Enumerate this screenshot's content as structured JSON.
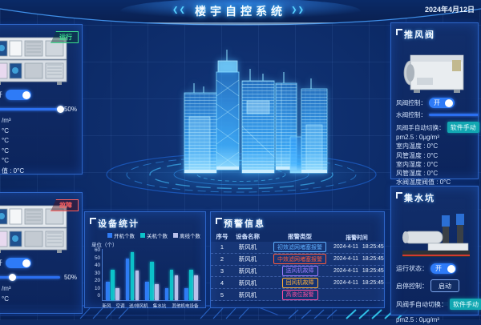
{
  "header": {
    "title": "楼宇自控系统",
    "date": "2024年4月12日",
    "left_chevron": "❮❮",
    "right_chevron": "❯❯"
  },
  "left_top_panel": {
    "status_badge": "运行",
    "switch_label": "开",
    "slider_value": "50%",
    "slider_knob_pct": 96,
    "lines": [
      "/m³",
      "°C",
      "°C",
      "°C",
      "°C",
      "值 : 0°C"
    ]
  },
  "left_bottom_panel": {
    "status_badge": "故障",
    "switch_label": "开",
    "slider_value": "50%",
    "slider_knob_pct": 38,
    "lines": [
      "/m³",
      "°C"
    ]
  },
  "chart_data": {
    "type": "bar",
    "title": "设备统计",
    "ylabel": "单位（个）",
    "categories": [
      "新风",
      "空调",
      "送/排风机",
      "集水坑",
      "其他机电设备"
    ],
    "series": [
      {
        "name": "开机个数",
        "color": "#2f7bf5",
        "values": [
          23,
          53,
          23,
          15,
          15
        ]
      },
      {
        "name": "关机个数",
        "color": "#0cc2c9",
        "values": [
          39,
          61,
          49,
          39,
          39
        ]
      },
      {
        "name": "离线个数",
        "color": "#b9c0ea",
        "values": [
          15,
          38,
          20,
          32,
          32
        ]
      }
    ],
    "y_ticks": [
      60,
      50,
      40,
      30,
      20,
      10,
      0
    ],
    "ylim": [
      0,
      65
    ],
    "legend_position": "top-right",
    "grid": false
  },
  "alerts": {
    "title": "预警信息",
    "columns": [
      "序号",
      "设备名称",
      "报警类型",
      "报警时间"
    ],
    "rows": [
      {
        "no": "1",
        "device": "新风机",
        "type": "初效滤网堵塞报警",
        "color": "#5fb0ff",
        "date": "2024-4-11",
        "time": "18:25:45"
      },
      {
        "no": "2",
        "device": "新风机",
        "type": "中效滤网堵塞报警",
        "color": "#ff5a3c",
        "date": "2024-4-11",
        "time": "18:25:45"
      },
      {
        "no": "3",
        "device": "新风机",
        "type": "送风机故障",
        "color": "#9d7bff",
        "date": "2024-4-11",
        "time": "18:25:45"
      },
      {
        "no": "4",
        "device": "新风机",
        "type": "回风机故障",
        "color": "#ffb03a",
        "date": "2024-4-11",
        "time": "18:25:45"
      },
      {
        "no": "5",
        "device": "新风机",
        "type": "高液位报警",
        "color": "#ff4fa0",
        "date": "",
        "time": ""
      }
    ]
  },
  "exhaust_valve_panel": {
    "title": "推风阀",
    "damper_label": "风阀控制：",
    "damper_state": "开",
    "water_valve_label": "水阀控制：",
    "manual_label": "风阀手自动切换：",
    "manual_value": "软件手动",
    "stats": [
      "pm2.5 : 0μg/m³",
      "室内温度 : 0°C",
      "风管温度 : 0°C",
      "室内湿度 : 0°C",
      "风管湿度 : 0°C",
      "水阀温度阀值 : 0°C"
    ]
  },
  "sump_panel": {
    "title": "集水坑",
    "run_label": "运行状态：",
    "run_state": "开",
    "startstop_label": "启停控制：",
    "startstop_value": "启动",
    "manual_label": "风阀手自动切换：",
    "manual_value": "软件手动",
    "stats": [
      "pm2.5 : 0μg/m³"
    ]
  }
}
